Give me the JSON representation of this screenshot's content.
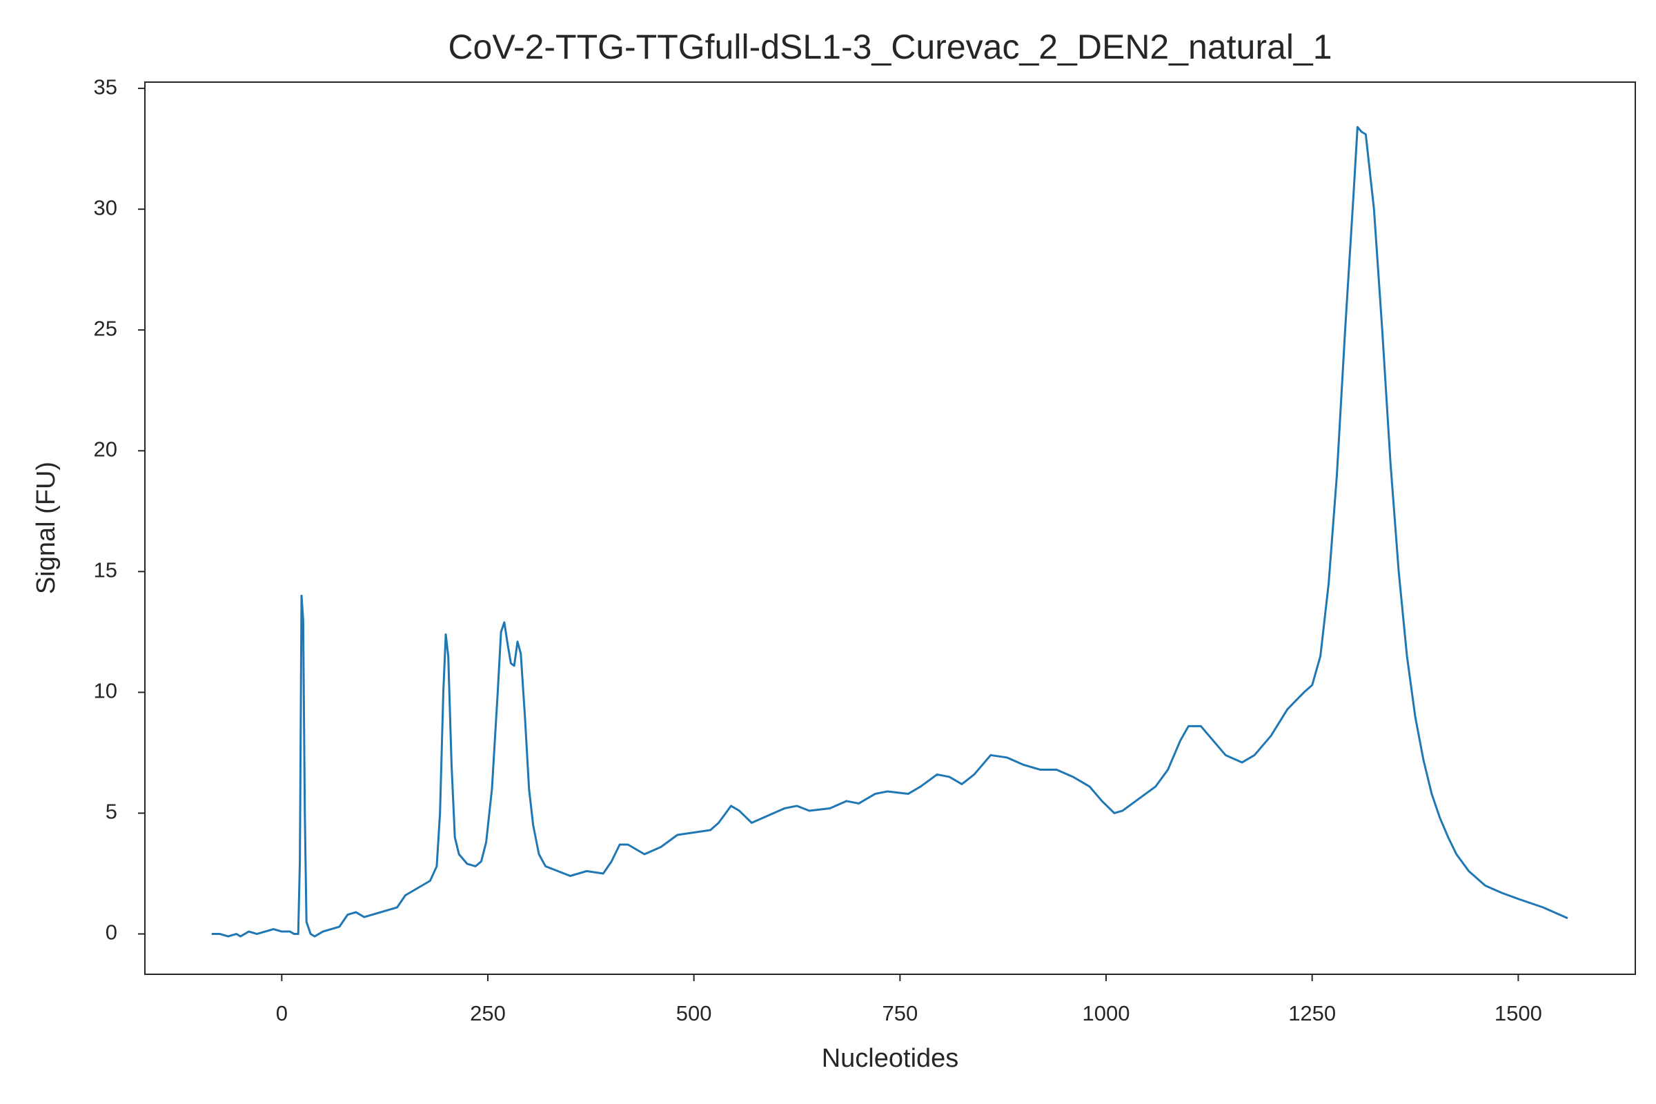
{
  "chart_data": {
    "type": "line",
    "title": "CoV-2-TTG-TTGfull-dSL1-3_Curevac_2_DEN2_natural_1",
    "xlabel": "Nucleotides",
    "ylabel": "Signal (FU)",
    "xlim": [
      -166,
      1642
    ],
    "ylim": [
      -1.67,
      35.26
    ],
    "xticks": [
      0,
      250,
      500,
      750,
      1000,
      1250,
      1500
    ],
    "yticks": [
      0,
      5,
      10,
      15,
      20,
      25,
      30,
      35
    ],
    "grid": false,
    "series": [
      {
        "name": "CoV-2-TTG-TTGfull-dSL1-3_Curevac_2_DEN2_natural_1",
        "color": "#1f77b4",
        "x": [
          -85,
          -75,
          -65,
          -55,
          -50,
          -40,
          -30,
          -20,
          -10,
          0,
          10,
          15,
          20,
          22,
          24,
          26,
          28,
          30,
          35,
          40,
          50,
          60,
          70,
          80,
          90,
          100,
          110,
          120,
          130,
          140,
          150,
          160,
          170,
          180,
          188,
          192,
          196,
          199,
          202,
          206,
          210,
          215,
          225,
          235,
          242,
          248,
          255,
          262,
          266,
          270,
          274,
          278,
          282,
          286,
          290,
          295,
          300,
          305,
          312,
          320,
          335,
          350,
          370,
          390,
          400,
          410,
          420,
          440,
          460,
          480,
          500,
          520,
          530,
          545,
          555,
          570,
          590,
          610,
          625,
          640,
          665,
          685,
          700,
          720,
          735,
          760,
          775,
          795,
          810,
          825,
          840,
          860,
          880,
          900,
          920,
          940,
          960,
          980,
          995,
          1010,
          1020,
          1040,
          1060,
          1075,
          1090,
          1100,
          1115,
          1130,
          1145,
          1165,
          1180,
          1200,
          1220,
          1240,
          1250,
          1260,
          1270,
          1280,
          1290,
          1300,
          1305,
          1310,
          1315,
          1325,
          1335,
          1345,
          1355,
          1365,
          1375,
          1385,
          1395,
          1405,
          1415,
          1425,
          1440,
          1460,
          1480,
          1500,
          1530,
          1560
        ],
        "values": [
          0,
          0,
          -0.1,
          0,
          -0.1,
          0.1,
          0,
          0.1,
          0.2,
          0.1,
          0.1,
          0,
          0,
          3,
          14,
          13,
          5,
          0.5,
          0,
          -0.1,
          0.1,
          0.2,
          0.3,
          0.8,
          0.9,
          0.7,
          0.8,
          0.9,
          1,
          1.1,
          1.6,
          1.8,
          2,
          2.2,
          2.8,
          5,
          10,
          12.4,
          11.5,
          7,
          4,
          3.3,
          2.9,
          2.8,
          3,
          3.8,
          6,
          10,
          12.5,
          12.9,
          12,
          11.2,
          11.1,
          12.1,
          11.6,
          9,
          6,
          4.5,
          3.3,
          2.8,
          2.6,
          2.4,
          2.6,
          2.5,
          3,
          3.7,
          3.7,
          3.3,
          3.6,
          4.1,
          4.2,
          4.3,
          4.6,
          5.3,
          5.1,
          4.6,
          4.9,
          5.2,
          5.3,
          5.1,
          5.2,
          5.5,
          5.4,
          5.8,
          5.9,
          5.8,
          6.1,
          6.6,
          6.5,
          6.2,
          6.6,
          7.4,
          7.3,
          7,
          6.8,
          6.8,
          6.5,
          6.1,
          5.5,
          5,
          5.1,
          5.6,
          6.1,
          6.8,
          8,
          8.6,
          8.6,
          8,
          7.4,
          7.1,
          7.4,
          8.2,
          9.3,
          10,
          10.3,
          11.5,
          14.5,
          19,
          25,
          30.5,
          33.4,
          33.2,
          33.1,
          30,
          25,
          19.5,
          15,
          11.5,
          9,
          7.2,
          5.8,
          4.8,
          4,
          3.3,
          2.6,
          2,
          1.7,
          1.45,
          1.1,
          0.65
        ]
      }
    ]
  }
}
